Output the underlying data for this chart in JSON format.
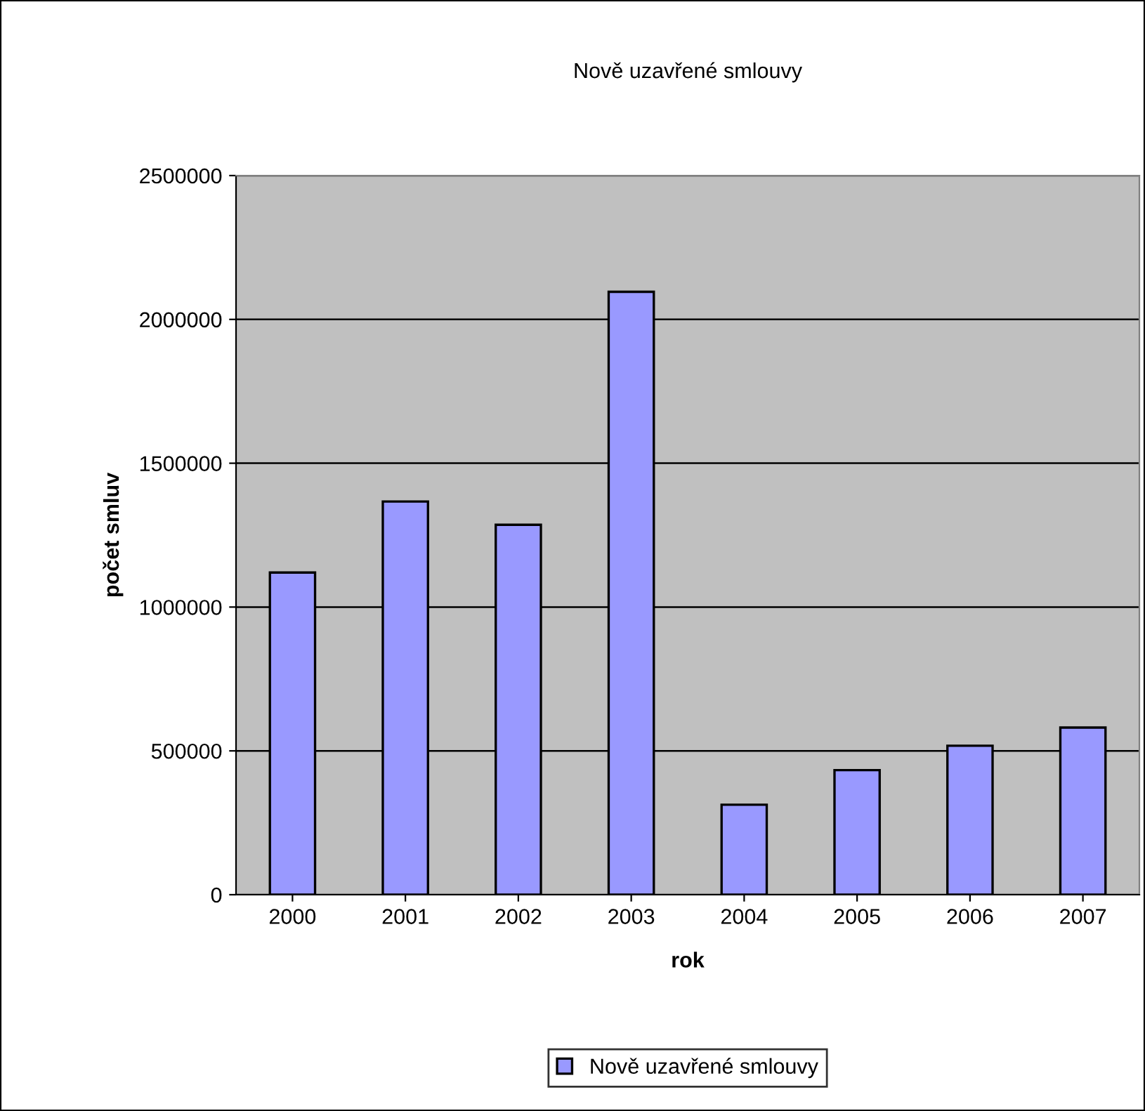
{
  "chart_data": {
    "type": "bar",
    "title": "Nově uzavřené smlouvy",
    "xlabel": "rok",
    "ylabel": "počet smluv",
    "categories": [
      "2000",
      "2001",
      "2002",
      "2003",
      "2004",
      "2005",
      "2006",
      "2007"
    ],
    "series": [
      {
        "name": "Nově uzavřené smlouvy",
        "color": "#9999ff",
        "values": [
          1120000,
          1367000,
          1286000,
          2096000,
          313000,
          433000,
          518000,
          581000
        ]
      }
    ],
    "ylim": [
      0,
      2500000
    ],
    "yticks": [
      0,
      500000,
      1000000,
      1500000,
      2000000,
      2500000
    ],
    "grid": "y",
    "legend": "bottom"
  }
}
